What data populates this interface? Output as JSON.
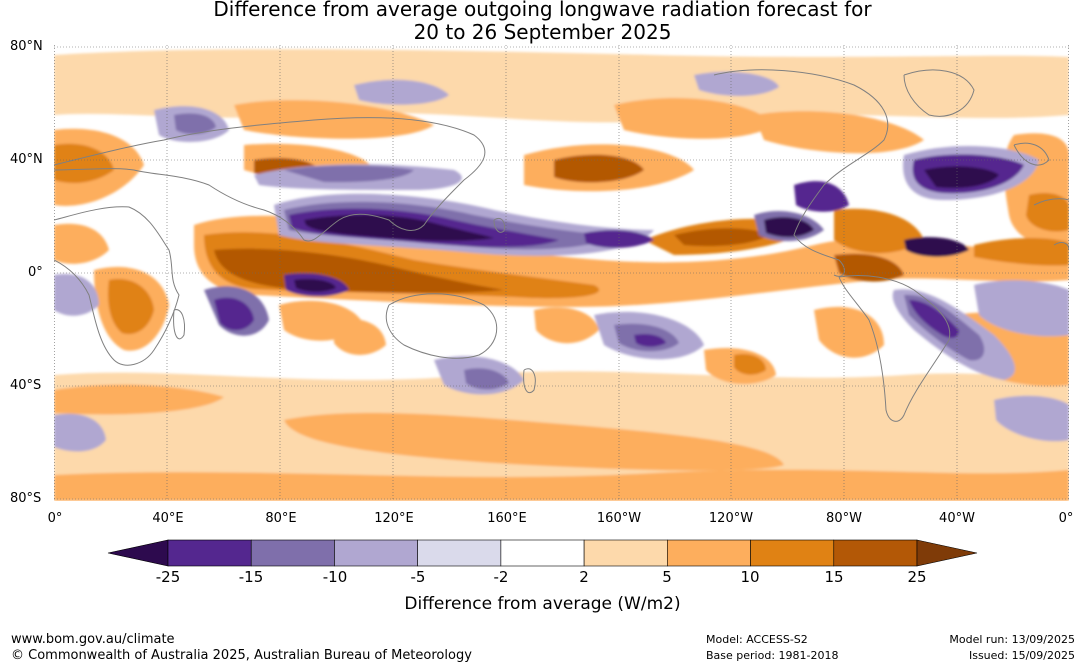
{
  "title": {
    "line1": "Difference from average outgoing longwave radiation forecast for",
    "line2": "20 to 26 September 2025"
  },
  "map": {
    "lat_labels": [
      "80°N",
      "40°N",
      "0°",
      "40°S",
      "80°S"
    ],
    "lon_labels": [
      "0°",
      "40°E",
      "80°E",
      "120°E",
      "160°E",
      "160°W",
      "120°W",
      "80°W",
      "40°W",
      "0°"
    ],
    "grid": true,
    "coastline_color": "#808080"
  },
  "legend": {
    "title": "Difference from average (W/m2)",
    "ticks": [
      "-25",
      "-15",
      "-10",
      "-5",
      "-2",
      "2",
      "5",
      "10",
      "15",
      "25"
    ],
    "colors": [
      "#2d0a4e",
      "#54278f",
      "#7f6fab",
      "#b0a7d1",
      "#dadaeb",
      "#ffffff",
      "#fdd9ab",
      "#fdae5d",
      "#e08214",
      "#b35806",
      "#7f3b08"
    ]
  },
  "footer": {
    "url": "www.bom.gov.au/climate",
    "copyright": "© Commonwealth of Australia 2025, Australian Bureau of Meteorology",
    "model": "Model: ACCESS-S2",
    "base_period": "Base period: 1981-2018",
    "model_run": "Model run: 13/09/2025",
    "issued": "Issued: 15/09/2025"
  }
}
